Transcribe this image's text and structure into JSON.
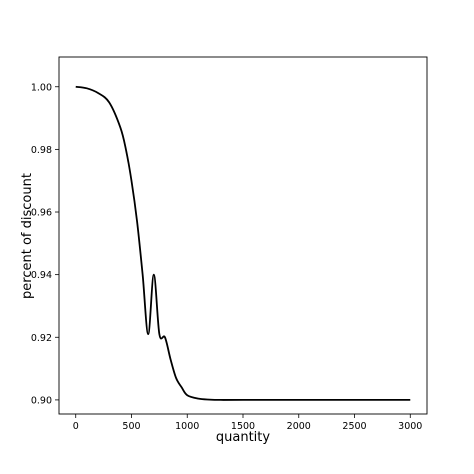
{
  "chart_data": {
    "type": "line",
    "title": "",
    "xlabel": "quantity",
    "ylabel": "percent of discount",
    "xlim": [
      -150,
      3150
    ],
    "ylim": [
      0.8955,
      1.0095
    ],
    "xticks": [
      0,
      500,
      1000,
      1500,
      2000,
      2500,
      3000
    ],
    "xtick_labels": [
      "0",
      "500",
      "1000",
      "1500",
      "2000",
      "2500",
      "3000"
    ],
    "yticks": [
      0.9,
      0.92,
      0.94,
      0.96,
      0.98,
      1.0
    ],
    "ytick_labels": [
      "0.90",
      "0.92",
      "0.94",
      "0.96",
      "0.98",
      "1.00"
    ],
    "grid": false,
    "legend": "none",
    "series": [
      {
        "color": "#000000",
        "x": [
          0,
          100,
          200,
          300,
          400,
          450,
          500,
          550,
          600,
          650,
          700,
          750,
          800,
          850,
          900,
          950,
          1000,
          1100,
          1200,
          1300,
          1500,
          2000,
          2500,
          3000
        ],
        "y": [
          1.0,
          0.9995,
          0.998,
          0.995,
          0.987,
          0.98,
          0.97,
          0.957,
          0.94,
          0.921,
          0.94,
          0.921,
          0.92,
          0.913,
          0.907,
          0.904,
          0.9015,
          0.9004,
          0.9001,
          0.9,
          0.9,
          0.9,
          0.9,
          0.9
        ]
      }
    ]
  }
}
